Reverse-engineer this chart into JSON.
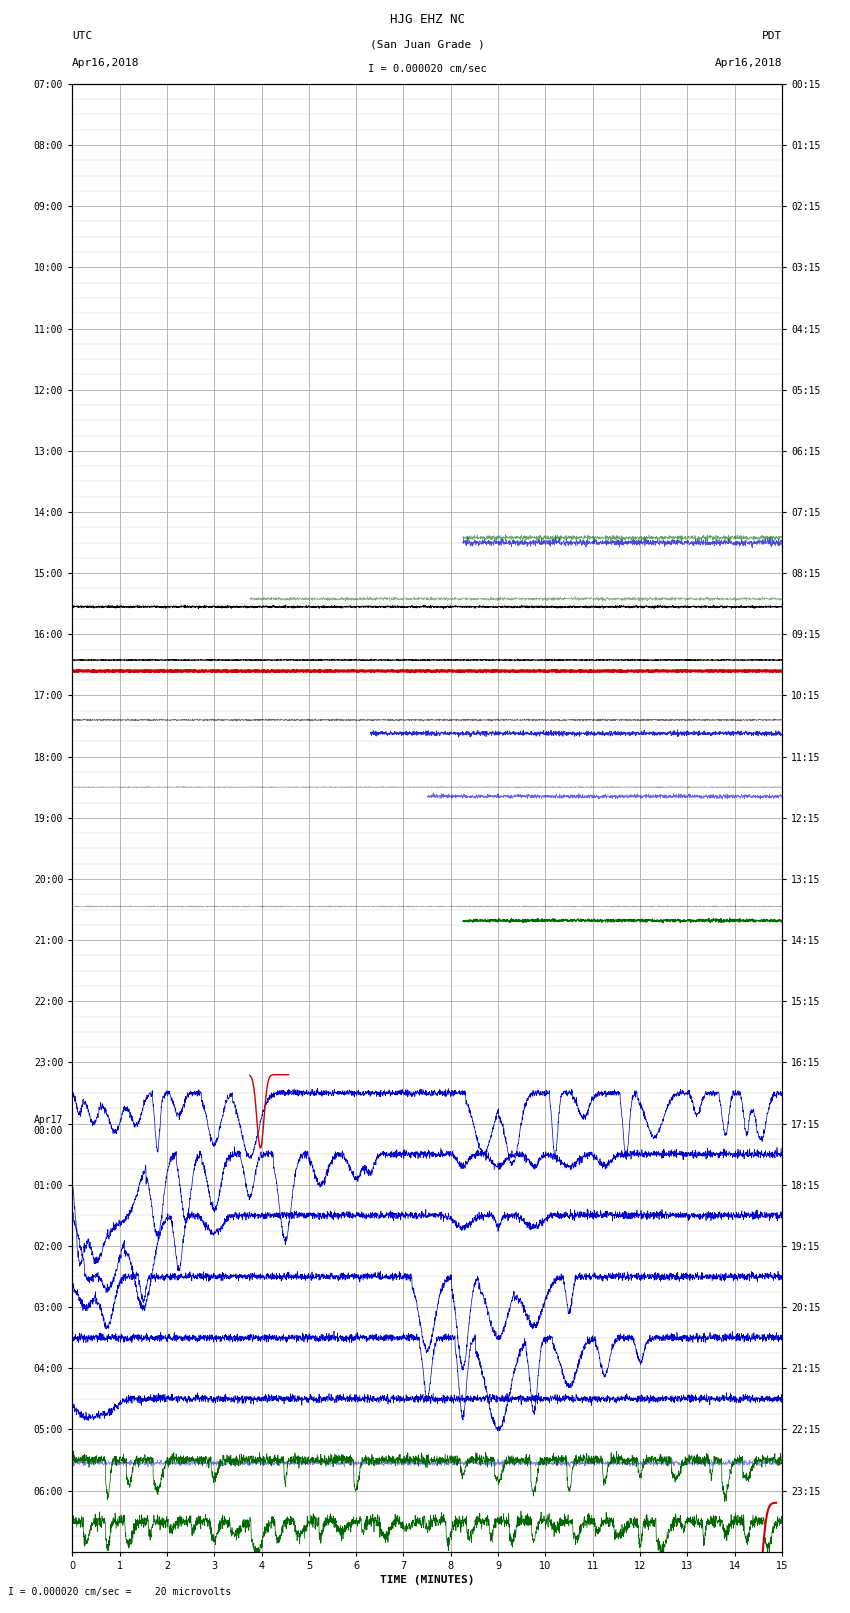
{
  "title_line1": "HJG EHZ NC",
  "title_line2": "(San Juan Grade )",
  "scale_label": "I = 0.000020 cm/sec",
  "left_label_top": "UTC",
  "left_label_date": "Apr16,2018",
  "right_label_top": "PDT",
  "right_label_date": "Apr16,2018",
  "bottom_label": "TIME (MINUTES)",
  "bottom_scale": "I = 0.000020 cm/sec =    20 microvolts",
  "utc_times": [
    "07:00",
    "08:00",
    "09:00",
    "10:00",
    "11:00",
    "12:00",
    "13:00",
    "14:00",
    "15:00",
    "16:00",
    "17:00",
    "18:00",
    "19:00",
    "20:00",
    "21:00",
    "22:00",
    "23:00",
    "Apr17\n00:00",
    "01:00",
    "02:00",
    "03:00",
    "04:00",
    "05:00",
    "06:00"
  ],
  "pdt_times": [
    "00:15",
    "01:15",
    "02:15",
    "03:15",
    "04:15",
    "05:15",
    "06:15",
    "07:15",
    "08:15",
    "09:15",
    "10:15",
    "11:15",
    "12:15",
    "13:15",
    "14:15",
    "15:15",
    "16:15",
    "17:15",
    "18:15",
    "19:15",
    "20:15",
    "21:15",
    "22:15",
    "23:15"
  ],
  "x_ticks": [
    0,
    1,
    2,
    3,
    4,
    5,
    6,
    7,
    8,
    9,
    10,
    11,
    12,
    13,
    14,
    15
  ],
  "figsize": [
    8.5,
    16.13
  ],
  "dpi": 100,
  "bg_color": "#ffffff",
  "grid_color_major": "#aaaaaa",
  "grid_color_minor": "#cccccc",
  "signal_color_blue": "#0000cc",
  "signal_color_red": "#cc0000",
  "signal_color_green": "#006600",
  "signal_color_black": "#000000",
  "num_rows": 24,
  "x_min": 0,
  "x_max": 15,
  "minor_divisions": 4
}
